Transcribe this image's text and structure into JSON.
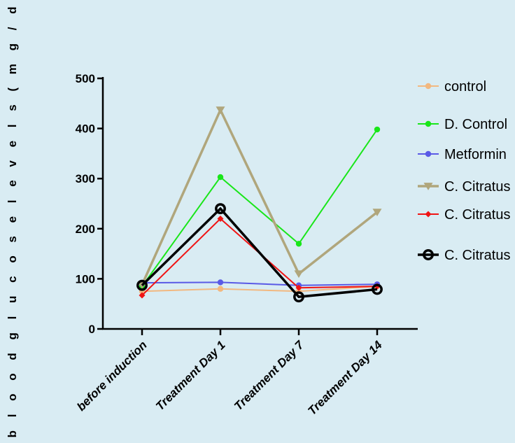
{
  "chart_data": {
    "type": "line",
    "title": "",
    "xlabel": "",
    "ylabel": "b l o o d  g l u c o s e  l e v e l s  ( m g / d l )",
    "ylim": [
      0,
      500
    ],
    "yticks": [
      "0",
      "100",
      "200",
      "300",
      "400",
      "500"
    ],
    "categories": [
      "before induction",
      "Treatment Day 1",
      "Treatment Day 7",
      "Treatment Day 14"
    ],
    "legend_position": "right",
    "series": [
      {
        "name": "control",
        "color": "#f2b880",
        "marker": "circle-small",
        "values": [
          75,
          80,
          75,
          85
        ]
      },
      {
        "name": "D. Control",
        "color": "#19e619",
        "marker": "circle-small",
        "values": [
          85,
          303,
          170,
          398
        ]
      },
      {
        "name": "Metformin",
        "color": "#5a5ae6",
        "marker": "circle-small",
        "values": [
          92,
          93,
          87,
          89
        ]
      },
      {
        "name": "C.  Citratus",
        "color": "#b0a67c",
        "marker": "triangle-down",
        "values": [
          88,
          437,
          110,
          233
        ]
      },
      {
        "name": "C.  Citratus",
        "color": "#f01414",
        "marker": "diamond",
        "values": [
          67,
          220,
          82,
          85
        ]
      },
      {
        "name": "C.  Citratus",
        "color": "#000000",
        "marker": "circle-open",
        "values": [
          87,
          240,
          64,
          79
        ]
      }
    ]
  }
}
